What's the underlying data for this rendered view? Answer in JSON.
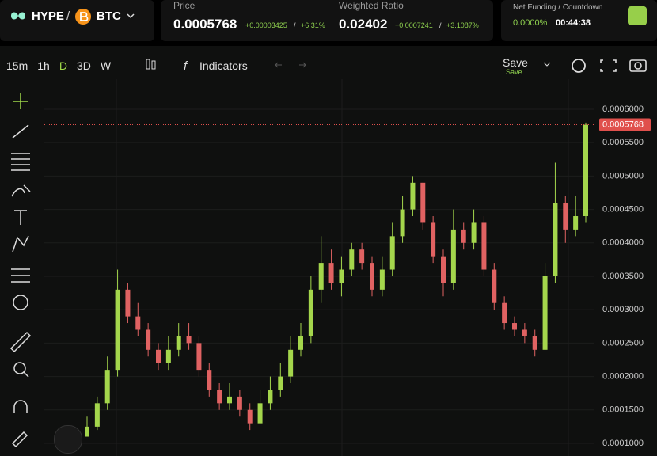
{
  "header": {
    "base": "HYPE",
    "sep": "/",
    "quote": "BTC",
    "price_label": "Price",
    "price": "0.0005768",
    "price_change": "+0.00003425",
    "price_sep": "/",
    "price_pct": "+6.31%",
    "ratio_label": "Weighted Ratio",
    "ratio": "0.02402",
    "ratio_change": "+0.0007241",
    "ratio_sep": "/",
    "ratio_pct": "+3.1087%",
    "funding_label": "Net Funding / Countdown",
    "funding": "0.0000%",
    "countdown": "00:44:38"
  },
  "toolbar": {
    "intervals": [
      "15m",
      "1h",
      "D",
      "3D",
      "W"
    ],
    "indicators": "Indicators",
    "save": "Save",
    "save_sub": "Save"
  },
  "chart_data": {
    "type": "candlestick",
    "up_color": "#a4d64c",
    "down_color": "#e06262",
    "ylim": [
      8.1e-05,
      0.000645
    ],
    "yticks": [
      {
        "value": 0.0001,
        "label": "0.0001000"
      },
      {
        "value": 0.00015,
        "label": "0.0001500"
      },
      {
        "value": 0.0002,
        "label": "0.0002000"
      },
      {
        "value": 0.00025,
        "label": "0.0002500"
      },
      {
        "value": 0.0003,
        "label": "0.0003000"
      },
      {
        "value": 0.00035,
        "label": "0.0003500"
      },
      {
        "value": 0.0004,
        "label": "0.0004000"
      },
      {
        "value": 0.00045,
        "label": "0.0004500"
      },
      {
        "value": 0.0005,
        "label": "0.0005000"
      },
      {
        "value": 0.00055,
        "label": "0.0005500"
      },
      {
        "value": 0.0006,
        "label": "0.0006000"
      }
    ],
    "grid": true,
    "last_price": 0.0005768,
    "last_price_color": "#e0504c",
    "open": [
      0.00011,
      0.000125,
      0.00016,
      0.00021,
      0.00033,
      0.00029,
      0.00027,
      0.00024,
      0.00022,
      0.00024,
      0.00026,
      0.00025,
      0.00021,
      0.00018,
      0.00016,
      0.00017,
      0.00015,
      0.00013,
      0.00016,
      0.00018,
      0.0002,
      0.00024,
      0.00026,
      0.00033,
      0.00037,
      0.00034,
      0.00036,
      0.00039,
      0.00037,
      0.00033,
      0.00036,
      0.00041,
      0.00045,
      0.00049,
      0.00043,
      0.00038,
      0.00034,
      0.00042,
      0.0004,
      0.00043,
      0.00036,
      0.00031,
      0.00028,
      0.00027,
      0.00026,
      0.00024,
      0.00035,
      0.00046,
      0.00042,
      0.00044
    ],
    "high": [
      0.00014,
      0.00017,
      0.00023,
      0.00036,
      0.00034,
      0.00031,
      0.00028,
      0.00025,
      0.00026,
      0.00028,
      0.00028,
      0.00026,
      0.00022,
      0.00019,
      0.00019,
      0.00018,
      0.00016,
      0.00018,
      0.0002,
      0.00022,
      0.00026,
      0.00028,
      0.00035,
      0.00041,
      0.00039,
      0.00038,
      0.0004,
      0.0004,
      0.00038,
      0.00038,
      0.00043,
      0.00047,
      0.0005,
      0.00049,
      0.00044,
      0.00039,
      0.00045,
      0.00043,
      0.00045,
      0.00044,
      0.00037,
      0.00032,
      0.00029,
      0.00028,
      0.00027,
      0.00037,
      0.00052,
      0.00047,
      0.00047,
      0.00058
    ],
    "low": [
      0.00011,
      0.00012,
      0.00015,
      0.0002,
      0.00028,
      0.00026,
      0.00023,
      0.00021,
      0.00021,
      0.00023,
      0.00024,
      0.0002,
      0.00017,
      0.00015,
      0.00015,
      0.00014,
      0.00012,
      0.00013,
      0.00015,
      0.00017,
      0.00019,
      0.00023,
      0.00025,
      0.00031,
      0.00033,
      0.00032,
      0.00035,
      0.00036,
      0.00032,
      0.00032,
      0.00035,
      0.0004,
      0.00044,
      0.00042,
      0.00037,
      0.00032,
      0.00033,
      0.00039,
      0.00039,
      0.00035,
      0.0003,
      0.00027,
      0.00026,
      0.00025,
      0.00023,
      0.00024,
      0.00034,
      0.0004,
      0.00041,
      0.00043
    ],
    "close": [
      0.000125,
      0.00016,
      0.00021,
      0.00033,
      0.00029,
      0.00027,
      0.00024,
      0.00022,
      0.00024,
      0.00026,
      0.00025,
      0.00021,
      0.00018,
      0.00016,
      0.00017,
      0.00015,
      0.00013,
      0.00016,
      0.00018,
      0.0002,
      0.00024,
      0.00026,
      0.00033,
      0.00037,
      0.00034,
      0.00036,
      0.00039,
      0.00037,
      0.00033,
      0.00036,
      0.00041,
      0.00045,
      0.00049,
      0.00043,
      0.00038,
      0.00034,
      0.00042,
      0.0004,
      0.00043,
      0.00036,
      0.00031,
      0.00028,
      0.00027,
      0.00026,
      0.00024,
      0.00035,
      0.00046,
      0.00042,
      0.00044,
      0.0005768
    ]
  }
}
